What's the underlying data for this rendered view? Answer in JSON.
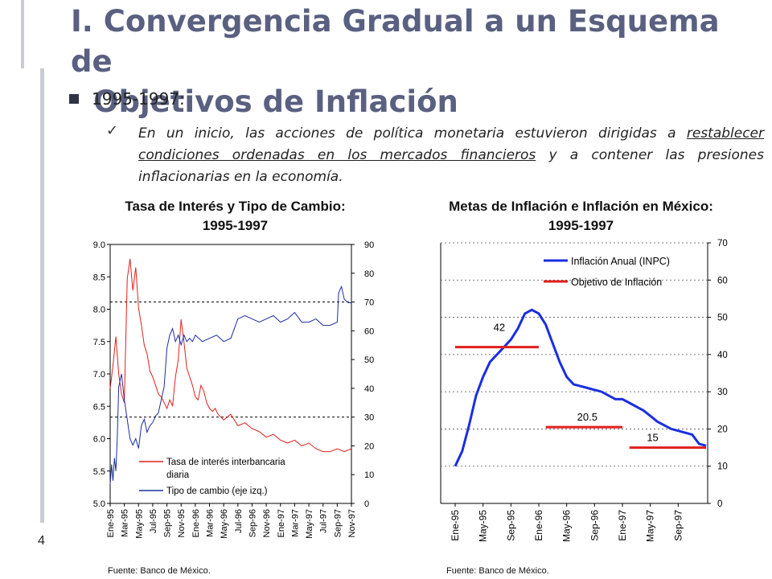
{
  "slide": {
    "title_line1": "I. Convergencia Gradual a un Esquema de",
    "title_line2": "Objetivos de Inflación",
    "bullet": "1995-1997:",
    "sub_parts": [
      "En un inicio, las acciones de política monetaria estuvieron dirigidas a ",
      "restablecer condiciones ordenadas en los mercados financieros",
      " y a contener las presiones inflacionarias en la economía."
    ],
    "page_number": "4"
  },
  "chart_data": [
    {
      "type": "line",
      "title": "Tasa de Interés y Tipo de Cambio:",
      "title_line2": "1995-1997",
      "source": "Fuente: Banco de México.",
      "categories": [
        "Ene-95",
        "Mar-95",
        "May-95",
        "Jul-95",
        "Sep-95",
        "Nov-95",
        "Ene-96",
        "Mar-96",
        "May-96",
        "Jul-96",
        "Sep-96",
        "Nov-96",
        "Ene-97",
        "Mar-97",
        "May-97",
        "Jul-97",
        "Sep-97",
        "Nov-97"
      ],
      "left_axis": {
        "ylim": [
          5.0,
          9.0
        ],
        "ticks": [
          "5.0",
          "5.5",
          "6.0",
          "6.5",
          "7.0",
          "7.5",
          "8.0",
          "8.5",
          "9.0"
        ]
      },
      "right_axis": {
        "ylim": [
          0,
          90
        ],
        "ticks": [
          "0",
          "10",
          "20",
          "30",
          "40",
          "50",
          "60",
          "70",
          "80",
          "90"
        ]
      },
      "gridlines_right": [
        30,
        70
      ],
      "legend": [
        "Tasa de interés interbancaria",
        "diaria",
        "Tipo de cambio (eje izq.)"
      ],
      "series": [
        {
          "name": "Tasa de interés interbancaria diaria",
          "axis": "right",
          "color": "#e0201c",
          "x": [
            0,
            0.2,
            0.4,
            0.6,
            0.8,
            1.0,
            1.2,
            1.4,
            1.6,
            1.8,
            2.0,
            2.2,
            2.4,
            2.6,
            2.8,
            3.0,
            3.2,
            3.4,
            3.6,
            3.8,
            4.0,
            4.2,
            4.4,
            4.6,
            4.8,
            5.0,
            5.2,
            5.4,
            5.6,
            5.8,
            6.0,
            6.2,
            6.4,
            6.6,
            6.8,
            7.0,
            7.2,
            7.4,
            7.6,
            7.8,
            8.0,
            8.5,
            9.0,
            9.5,
            10.0,
            10.5,
            11.0,
            11.5,
            12.0,
            12.5,
            13.0,
            13.5,
            14.0,
            14.5,
            15.0,
            15.5,
            16.0,
            16.5,
            17.0
          ],
          "values": [
            40,
            48,
            58,
            45,
            38,
            35,
            78,
            85,
            74,
            82,
            68,
            62,
            55,
            52,
            46,
            44,
            41,
            38,
            37,
            35,
            33,
            36,
            34,
            44,
            50,
            64,
            56,
            47,
            44,
            41,
            37,
            36,
            41,
            39,
            35,
            33,
            32,
            33,
            31,
            30,
            29,
            31,
            27,
            28,
            26,
            25,
            23,
            24,
            22,
            21,
            22,
            20,
            21,
            19,
            18,
            18,
            19,
            18,
            19
          ]
        },
        {
          "name": "Tipo de cambio (eje izq.)",
          "axis": "left",
          "color": "#1c2ea0",
          "x": [
            0,
            0.1,
            0.2,
            0.3,
            0.4,
            0.5,
            0.6,
            0.8,
            1.0,
            1.2,
            1.4,
            1.6,
            1.8,
            2.0,
            2.2,
            2.4,
            2.6,
            2.8,
            3.0,
            3.2,
            3.4,
            3.6,
            3.8,
            4.0,
            4.2,
            4.4,
            4.6,
            4.8,
            5.0,
            5.2,
            5.4,
            5.6,
            5.8,
            6.0,
            6.5,
            7.0,
            7.5,
            8.0,
            8.5,
            9.0,
            9.5,
            10.0,
            10.5,
            11.0,
            11.5,
            12.0,
            12.5,
            13.0,
            13.5,
            14.0,
            14.5,
            15.0,
            15.5,
            16.0,
            16.1,
            16.3,
            16.5,
            16.8,
            17.0
          ],
          "values": [
            5.3,
            5.6,
            5.35,
            5.7,
            5.5,
            6.0,
            6.8,
            7.0,
            6.6,
            6.3,
            6.0,
            5.9,
            6.0,
            5.85,
            6.2,
            6.3,
            6.1,
            6.2,
            6.25,
            6.35,
            6.4,
            6.6,
            6.8,
            7.4,
            7.6,
            7.7,
            7.5,
            7.6,
            7.45,
            7.6,
            7.5,
            7.55,
            7.5,
            7.6,
            7.5,
            7.55,
            7.6,
            7.5,
            7.55,
            7.85,
            7.9,
            7.85,
            7.8,
            7.85,
            7.9,
            7.8,
            7.85,
            7.95,
            7.8,
            7.8,
            7.85,
            7.75,
            7.75,
            7.8,
            8.25,
            8.35,
            8.15,
            8.1,
            8.1
          ]
        }
      ]
    },
    {
      "type": "line",
      "title": "Metas de Inflación e Inflación en México:",
      "title_line2": "1995-1997",
      "source": "Fuente: Banco de México.",
      "categories": [
        "Ene-95",
        "May-95",
        "Sep-95",
        "Ene-96",
        "May-96",
        "Sep-96",
        "Ene-97",
        "May-97",
        "Sep-97"
      ],
      "right_axis": {
        "ylim": [
          0,
          70
        ],
        "ticks": [
          "0",
          "10",
          "20",
          "30",
          "40",
          "50",
          "60",
          "70"
        ]
      },
      "legend": [
        "Inflación Anual (INPC)",
        "Objetivo de Inflación"
      ],
      "annotations": [
        "42",
        "20.5",
        "15"
      ],
      "series": [
        {
          "name": "Inflación Anual (INPC)",
          "color": "#1a2ee0",
          "x": [
            0,
            1,
            2,
            3,
            4,
            5,
            6,
            7,
            8,
            9,
            10,
            11,
            12,
            13,
            14,
            15,
            16,
            17,
            18,
            19,
            20,
            21,
            22,
            23,
            24,
            25,
            26,
            27,
            28,
            29,
            30,
            31,
            32,
            33,
            34,
            35,
            36
          ],
          "values": [
            10,
            14,
            21,
            29,
            34,
            38,
            40,
            42,
            44,
            47,
            51,
            52,
            51,
            48,
            43,
            38,
            34,
            32,
            31.5,
            31,
            30.5,
            30,
            29,
            28,
            28,
            27,
            26,
            25,
            23.5,
            22,
            21,
            20,
            19.5,
            19,
            18.5,
            16,
            15.5
          ]
        },
        {
          "name": "Objetivo de Inflación",
          "color": "#e0201c",
          "segments": [
            {
              "x": [
                0,
                12
              ],
              "value": 42
            },
            {
              "x": [
                13,
                24
              ],
              "value": 20.5
            },
            {
              "x": [
                25,
                36
              ],
              "value": 15
            }
          ]
        }
      ]
    }
  ]
}
